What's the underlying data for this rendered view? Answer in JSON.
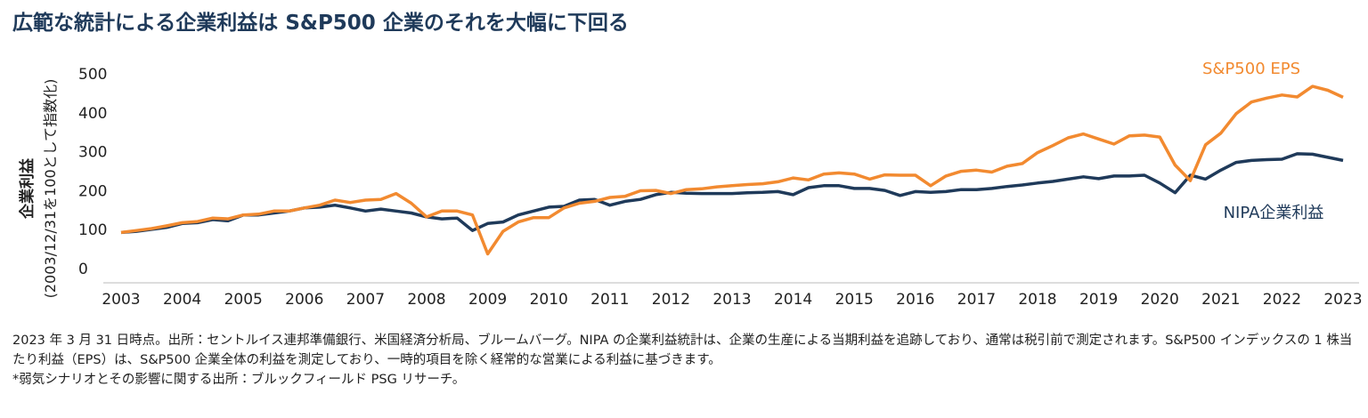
{
  "chart_data": {
    "type": "line",
    "title": "広範な統計による企業利益は S&P500 企業のそれを大幅に下回る",
    "y_label": "企業利益",
    "y_sublabel": "(2003/12/31を100として指数化)",
    "x": [
      2003,
      2003.25,
      2003.5,
      2003.75,
      2004,
      2004.25,
      2004.5,
      2004.75,
      2005,
      2005.25,
      2005.5,
      2005.75,
      2006,
      2006.25,
      2006.5,
      2006.75,
      2007,
      2007.25,
      2007.5,
      2007.75,
      2008,
      2008.25,
      2008.5,
      2008.75,
      2009,
      2009.25,
      2009.5,
      2009.75,
      2010,
      2010.25,
      2010.5,
      2010.75,
      2011,
      2011.25,
      2011.5,
      2011.75,
      2012,
      2012.25,
      2012.5,
      2012.75,
      2013,
      2013.25,
      2013.5,
      2013.75,
      2014,
      2014.25,
      2014.5,
      2014.75,
      2015,
      2015.25,
      2015.5,
      2015.75,
      2016,
      2016.25,
      2016.5,
      2016.75,
      2017,
      2017.25,
      2017.5,
      2017.75,
      2018,
      2018.25,
      2018.5,
      2018.75,
      2019,
      2019.25,
      2019.5,
      2019.75,
      2020,
      2020.25,
      2020.5,
      2020.75,
      2021,
      2021.25,
      2021.5,
      2021.75,
      2022,
      2022.25,
      2022.5,
      2022.75,
      2023
    ],
    "series": [
      {
        "name": "S&P500 EPS",
        "color": "#f28a30",
        "values": [
          95,
          100,
          105,
          112,
          120,
          123,
          132,
          130,
          140,
          142,
          150,
          150,
          158,
          165,
          178,
          172,
          178,
          180,
          195,
          170,
          135,
          150,
          150,
          140,
          40,
          98,
          122,
          133,
          133,
          158,
          170,
          175,
          185,
          188,
          202,
          203,
          195,
          205,
          207,
          212,
          215,
          218,
          220,
          225,
          235,
          230,
          245,
          248,
          245,
          232,
          243,
          242,
          242,
          215,
          240,
          252,
          255,
          250,
          265,
          272,
          300,
          318,
          338,
          348,
          335,
          322,
          343,
          345,
          340,
          268,
          228,
          320,
          350,
          400,
          430,
          440,
          448,
          443,
          470,
          460,
          442
        ]
      },
      {
        "name": "NIPA企業利益",
        "color": "#1f3a5a",
        "values": [
          95,
          98,
          103,
          108,
          118,
          120,
          128,
          125,
          140,
          140,
          145,
          150,
          158,
          160,
          165,
          158,
          150,
          155,
          150,
          145,
          135,
          130,
          132,
          100,
          118,
          122,
          140,
          150,
          160,
          162,
          178,
          180,
          165,
          175,
          180,
          192,
          198,
          196,
          195,
          195,
          195,
          197,
          198,
          200,
          192,
          210,
          215,
          215,
          208,
          208,
          203,
          190,
          200,
          198,
          200,
          205,
          205,
          208,
          213,
          217,
          222,
          226,
          232,
          238,
          233,
          240,
          240,
          242,
          222,
          197,
          242,
          232,
          255,
          275,
          280,
          282,
          283,
          297,
          296,
          288,
          280
        ]
      }
    ],
    "xlim": [
      2003,
      2023
    ],
    "xticks": [
      2003,
      2004,
      2005,
      2006,
      2007,
      2008,
      2009,
      2010,
      2011,
      2012,
      2013,
      2014,
      2015,
      2016,
      2017,
      2018,
      2019,
      2020,
      2021,
      2022,
      2023
    ],
    "ylim": [
      0,
      500
    ],
    "yticks": [
      0,
      100,
      200,
      300,
      400,
      500
    ],
    "grid": false
  },
  "notes": [
    "2023 年 3 月 31 日時点。出所：セントルイス連邦準備銀行、米国経済分析局、ブルームバーグ。NIPA の企業利益統計は、企業の生産による当期利益を追跡しており、通常は税引前で測定されます。S&P500 インデックスの 1 株当たり利益（EPS）は、S&P500 企業全体の利益を測定しており、一時的項目を除く経常的な営業による利益に基づきます。",
    "*弱気シナリオとその影響に関する出所：ブルックフィールド PSG リサーチ。"
  ]
}
